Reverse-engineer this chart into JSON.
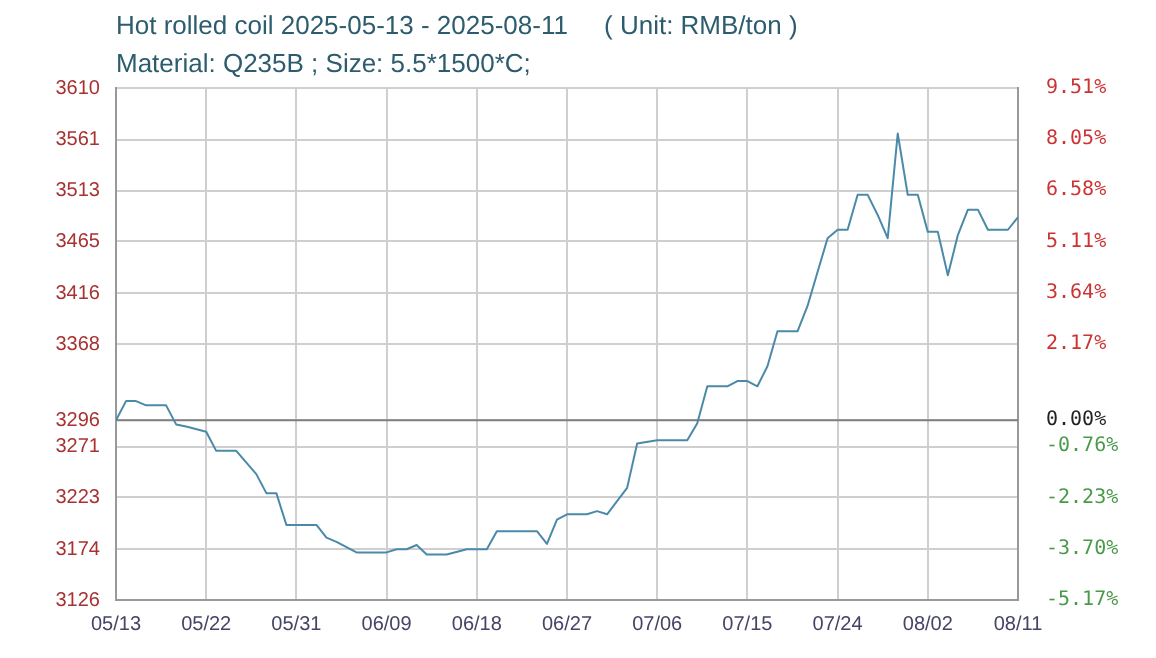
{
  "chart_data": {
    "type": "line",
    "title": "Hot rolled coil 2025-05-13 - 2025-08-11     ( Unit: RMB/ton )",
    "subtitle": "Material: Q235B ; Size: 5.5*1500*C;",
    "x": [
      "2025-05-13",
      "2025-05-14",
      "2025-05-15",
      "2025-05-16",
      "2025-05-18",
      "2025-05-19",
      "2025-05-20",
      "2025-05-22",
      "2025-05-23",
      "2025-05-25",
      "2025-05-27",
      "2025-05-28",
      "2025-05-29",
      "2025-05-30",
      "2025-06-02",
      "2025-06-03",
      "2025-06-04",
      "2025-06-06",
      "2025-06-09",
      "2025-06-10",
      "2025-06-11",
      "2025-06-12",
      "2025-06-13",
      "2025-06-15",
      "2025-06-17",
      "2025-06-19",
      "2025-06-20",
      "2025-06-24",
      "2025-06-25",
      "2025-06-26",
      "2025-06-27",
      "2025-06-29",
      "2025-06-30",
      "2025-07-01",
      "2025-07-03",
      "2025-07-04",
      "2025-07-06",
      "2025-07-09",
      "2025-07-10",
      "2025-07-11",
      "2025-07-13",
      "2025-07-14",
      "2025-07-15",
      "2025-07-16",
      "2025-07-17",
      "2025-07-18",
      "2025-07-20",
      "2025-07-21",
      "2025-07-22",
      "2025-07-23",
      "2025-07-24",
      "2025-07-25",
      "2025-07-26",
      "2025-07-27",
      "2025-07-28",
      "2025-07-29",
      "2025-07-30",
      "2025-07-31",
      "2025-08-01",
      "2025-08-02",
      "2025-08-03",
      "2025-08-04",
      "2025-08-05",
      "2025-08-06",
      "2025-08-07",
      "2025-08-08",
      "2025-08-10",
      "2025-08-11"
    ],
    "series": [
      {
        "color": "#4a8aa8",
        "values": [
          3296,
          3314,
          3314,
          3310,
          3310,
          3292,
          3290,
          3285,
          3267,
          3267,
          3245,
          3227,
          3227,
          3197,
          3197,
          3185,
          3181,
          3171,
          3171,
          3174,
          3174,
          3178,
          3169,
          3169,
          3174,
          3174,
          3191,
          3191,
          3179,
          3202,
          3207,
          3207,
          3210,
          3207,
          3232,
          3274,
          3277,
          3277,
          3293,
          3328,
          3328,
          3333,
          3333,
          3328,
          3347,
          3380,
          3380,
          3404,
          3436,
          3468,
          3476,
          3476,
          3509,
          3509,
          3490,
          3468,
          3567,
          3509,
          3509,
          3474,
          3474,
          3433,
          3471,
          3495,
          3495,
          3476,
          3476,
          3488
        ]
      }
    ],
    "xlim": [
      "2025-05-13",
      "2025-08-11"
    ],
    "xticks": [
      {
        "value": "2025-05-13",
        "label": "05/13"
      },
      {
        "value": "2025-05-22",
        "label": "05/22"
      },
      {
        "value": "2025-05-31",
        "label": "05/31"
      },
      {
        "value": "2025-06-09",
        "label": "06/09"
      },
      {
        "value": "2025-06-18",
        "label": "06/18"
      },
      {
        "value": "2025-06-27",
        "label": "06/27"
      },
      {
        "value": "2025-07-06",
        "label": "07/06"
      },
      {
        "value": "2025-07-15",
        "label": "07/15"
      },
      {
        "value": "2025-07-24",
        "label": "07/24"
      },
      {
        "value": "2025-08-02",
        "label": "08/02"
      },
      {
        "value": "2025-08-11",
        "label": "08/11"
      }
    ],
    "ylim": [
      3126,
      3610
    ],
    "yticks": [
      3126,
      3174,
      3223,
      3271,
      3296,
      3368,
      3416,
      3465,
      3513,
      3561,
      3610
    ],
    "y2lim": [
      -5.17,
      9.51
    ],
    "y2ticks": [
      {
        "value": -5.17,
        "label": "-5.17%"
      },
      {
        "value": -3.7,
        "label": "-3.70%"
      },
      {
        "value": -2.23,
        "label": "-2.23%"
      },
      {
        "value": -0.76,
        "label": "-0.76%"
      },
      {
        "value": 0,
        "label": "0.00%"
      },
      {
        "value": 2.17,
        "label": "2.17%"
      },
      {
        "value": 3.64,
        "label": "3.64%"
      },
      {
        "value": 5.11,
        "label": "5.11%"
      },
      {
        "value": 6.58,
        "label": "6.58%"
      },
      {
        "value": 8.05,
        "label": "8.05%"
      },
      {
        "value": 9.51,
        "label": "9.51%"
      }
    ],
    "ref_lines": [
      {
        "axis": "y",
        "value": 3296,
        "color": "#808080"
      }
    ],
    "grid": true,
    "legend": false,
    "marker": "none",
    "line_style": "solid"
  }
}
